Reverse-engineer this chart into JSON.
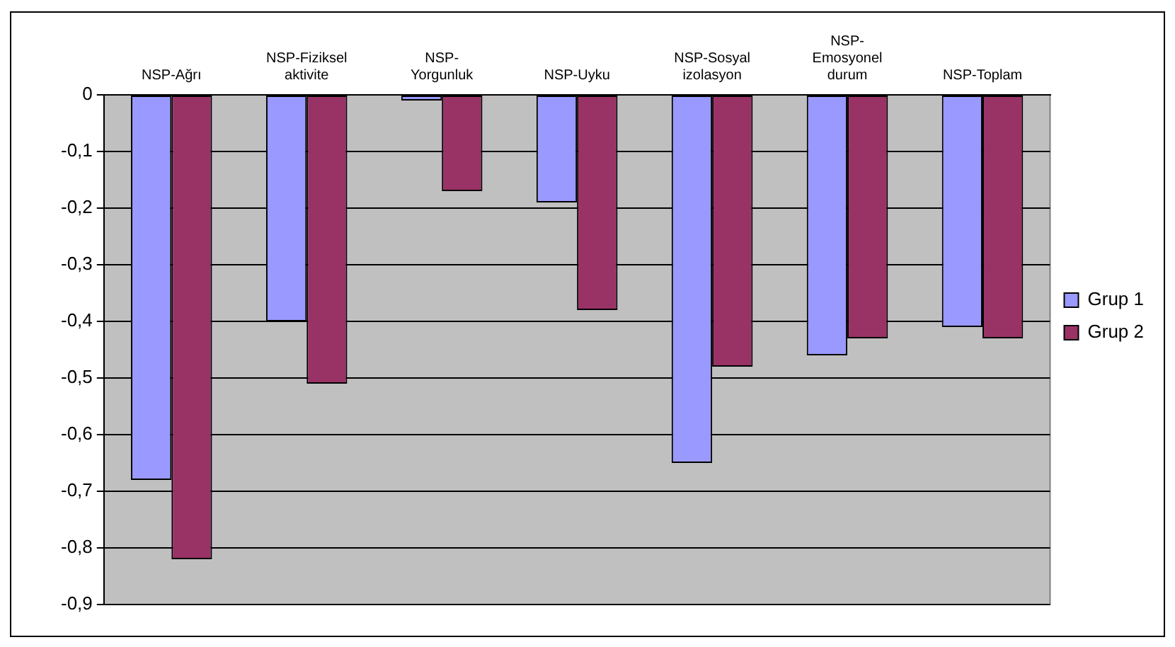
{
  "chart_data": {
    "type": "bar",
    "categories": [
      "NSP-Ağrı",
      "NSP-Fiziksel aktivite",
      "NSP-Yorgunluk",
      "NSP-Uyku",
      "NSP-Sosyal izolasyon",
      "NSP-Emosyonel durum",
      "NSP-Toplam"
    ],
    "series": [
      {
        "name": "Grup 1",
        "color": "#9999ff",
        "values": [
          -0.68,
          -0.4,
          -0.01,
          -0.19,
          -0.65,
          -0.46,
          -0.41
        ]
      },
      {
        "name": "Grup 2",
        "color": "#993366",
        "values": [
          -0.82,
          -0.51,
          -0.17,
          -0.38,
          -0.48,
          -0.43,
          -0.43
        ]
      }
    ],
    "ylim": [
      -0.9,
      0
    ],
    "yticks": [
      0,
      {
        "value": -0.1,
        "label": "-0,1"
      },
      {
        "value": -0.2,
        "label": "-0,2"
      },
      {
        "value": -0.3,
        "label": "-0,3"
      },
      {
        "value": -0.4,
        "label": "-0,4"
      },
      {
        "value": -0.5,
        "label": "-0,5"
      },
      {
        "value": -0.6,
        "label": "-0,6"
      },
      {
        "value": -0.7,
        "label": "-0,7"
      },
      {
        "value": -0.8,
        "label": "-0,8"
      },
      {
        "value": -0.9,
        "label": "-0,9"
      }
    ],
    "grid": "y",
    "legend": "right"
  }
}
